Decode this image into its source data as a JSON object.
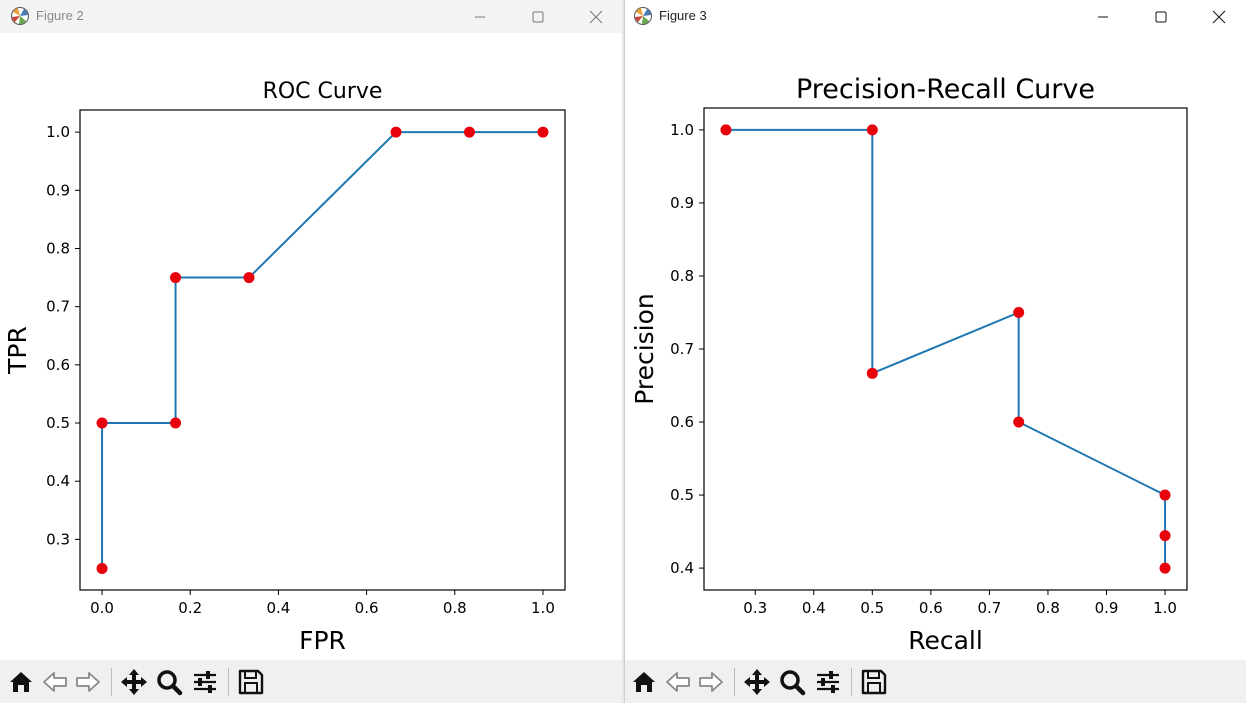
{
  "windows": [
    {
      "title": "Figure 2",
      "chart_data": {
        "type": "line",
        "title": "ROC Curve",
        "xlabel": "FPR",
        "ylabel": "TPR",
        "x": [
          0.0,
          0.0,
          0.1667,
          0.1667,
          0.3333,
          0.6667,
          0.8333,
          1.0
        ],
        "y": [
          0.25,
          0.5,
          0.5,
          0.75,
          0.75,
          1.0,
          1.0,
          1.0
        ],
        "xlim": [
          -0.05,
          1.05
        ],
        "ylim": [
          0.213,
          1.038
        ],
        "xticks": [
          0.0,
          0.2,
          0.4,
          0.6,
          0.8,
          1.0
        ],
        "xtick_labels": [
          "0.0",
          "0.2",
          "0.4",
          "0.6",
          "0.8",
          "1.0"
        ],
        "yticks": [
          0.3,
          0.4,
          0.5,
          0.6,
          0.7,
          0.8,
          0.9,
          1.0
        ],
        "ytick_labels": [
          "0.3",
          "0.4",
          "0.5",
          "0.6",
          "0.7",
          "0.8",
          "0.9",
          "1.0"
        ],
        "line_color": "#1f77b4",
        "marker_color": "#e8000b",
        "grid": false
      }
    },
    {
      "title": "Figure 3",
      "chart_data": {
        "type": "line",
        "title": "Precision-Recall Curve",
        "xlabel": "Recall",
        "ylabel": "Precision",
        "x": [
          0.25,
          0.5,
          0.5,
          0.75,
          0.75,
          1.0,
          1.0,
          1.0
        ],
        "y": [
          1.0,
          1.0,
          0.6667,
          0.75,
          0.6,
          0.5,
          0.4444,
          0.4
        ],
        "xlim": [
          0.2125,
          1.0375
        ],
        "ylim": [
          0.37,
          1.03
        ],
        "xticks": [
          0.3,
          0.4,
          0.5,
          0.6,
          0.7,
          0.8,
          0.9,
          1.0
        ],
        "xtick_labels": [
          "0.3",
          "0.4",
          "0.5",
          "0.6",
          "0.7",
          "0.8",
          "0.9",
          "1.0"
        ],
        "yticks": [
          0.4,
          0.5,
          0.6,
          0.7,
          0.8,
          0.9,
          1.0
        ],
        "ytick_labels": [
          "0.4",
          "0.5",
          "0.6",
          "0.7",
          "0.8",
          "0.9",
          "1.0"
        ],
        "line_color": "#1f77b4",
        "marker_color": "#e8000b",
        "grid": false
      }
    }
  ],
  "toolbar_icons": [
    "home-icon",
    "back-icon",
    "forward-icon",
    "move-icon",
    "zoom-icon",
    "configure-icon",
    "save-icon"
  ],
  "window_controls": [
    "minimize-icon",
    "maximize-icon",
    "close-icon"
  ]
}
